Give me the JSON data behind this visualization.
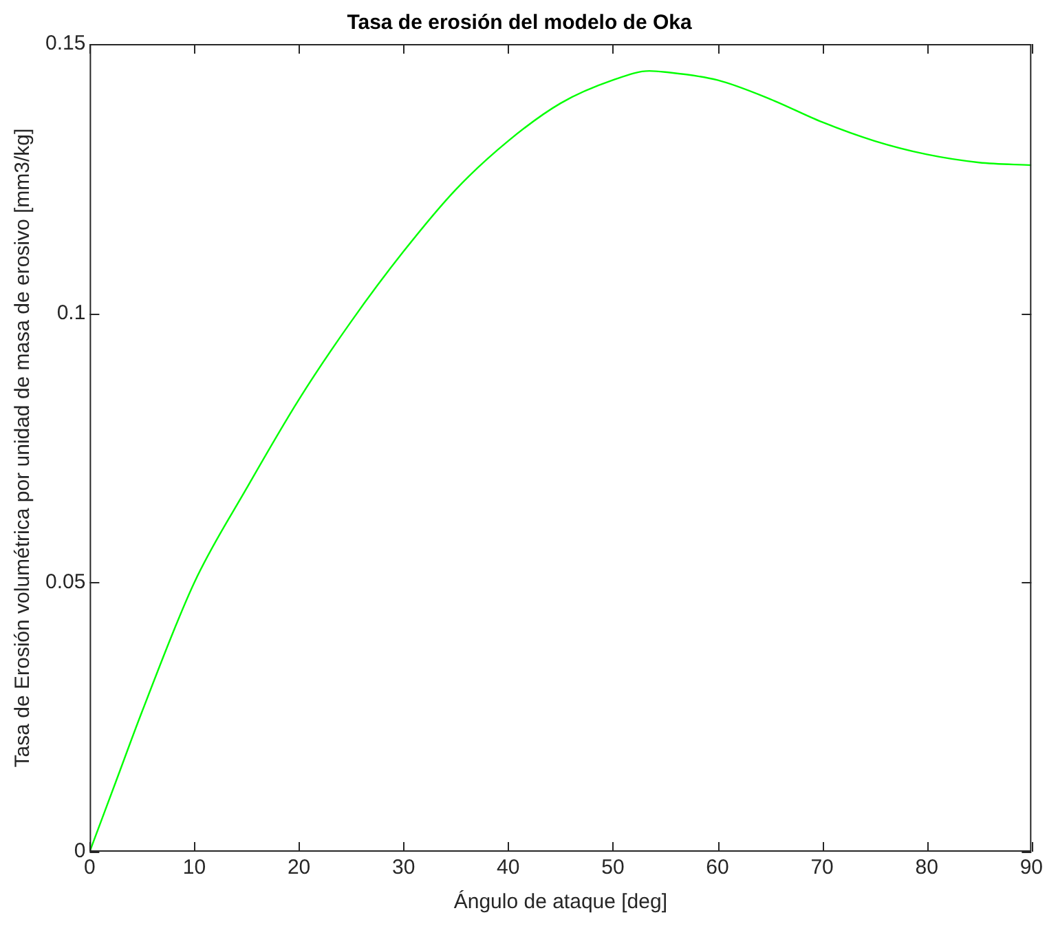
{
  "chart_data": {
    "type": "line",
    "title": "Tasa de erosión del modelo de Oka",
    "xlabel": "Ángulo de ataque [deg]",
    "ylabel": "Tasa de Erosión volumétrica por unidad de masa de erosivo [mm3/kg]",
    "x": [
      0,
      2.5,
      5,
      10,
      15,
      20,
      25,
      30,
      35,
      40,
      45,
      50,
      53.5,
      55,
      60,
      65,
      70,
      75,
      80,
      85,
      90
    ],
    "series": [
      {
        "color": "#00ff00",
        "values": [
          0,
          0.013,
          0.026,
          0.05,
          0.0675,
          0.084,
          0.0985,
          0.1115,
          0.123,
          0.132,
          0.139,
          0.1433,
          0.145,
          0.1448,
          0.1433,
          0.1398,
          0.1355,
          0.132,
          0.1295,
          0.128,
          0.1275
        ]
      }
    ],
    "xlim": [
      0,
      90
    ],
    "xticks": [
      0,
      10,
      20,
      30,
      40,
      50,
      60,
      70,
      80,
      90
    ],
    "ylim": [
      0,
      0.15
    ],
    "yticks": [
      0,
      0.05,
      0.1,
      0.15
    ],
    "grid": false,
    "legend": false,
    "marker": "none",
    "line_style": "solid"
  }
}
